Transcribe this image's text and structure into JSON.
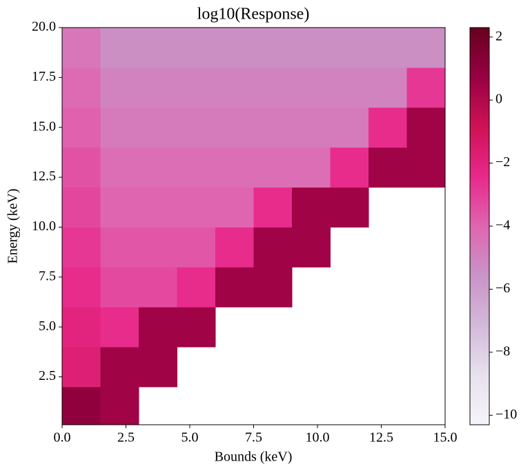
{
  "chart_data": {
    "type": "heatmap",
    "title": "log10(Response)",
    "x_label": "Bounds (keV)",
    "y_label": "Energy (keV)",
    "xlim": [
      0,
      15
    ],
    "ylim": [
      0.1,
      20
    ],
    "xticks": [
      {
        "value": 0,
        "label": "0.0"
      },
      {
        "value": 2.5,
        "label": "2.5"
      },
      {
        "value": 5,
        "label": "5.0"
      },
      {
        "value": 7.5,
        "label": "7.5"
      },
      {
        "value": 10,
        "label": "10.0"
      },
      {
        "value": 12.5,
        "label": "12.5"
      },
      {
        "value": 15,
        "label": "15.0"
      }
    ],
    "yticks": [
      {
        "value": 2.5,
        "label": "2.5"
      },
      {
        "value": 5,
        "label": "5.0"
      },
      {
        "value": 7.5,
        "label": "7.5"
      },
      {
        "value": 10,
        "label": "10.0"
      },
      {
        "value": 12.5,
        "label": "12.5"
      },
      {
        "value": 15,
        "label": "15.0"
      },
      {
        "value": 17.5,
        "label": "17.5"
      },
      {
        "value": 20,
        "label": "20.0"
      }
    ],
    "x_bins": [
      0,
      1.5,
      3,
      4.5,
      6,
      7.5,
      9,
      10.5,
      12,
      13.5,
      15
    ],
    "y_bins": [
      0,
      2,
      4,
      6,
      8,
      10,
      12,
      14,
      16,
      18,
      20
    ],
    "z": [
      [
        1,
        0.5,
        null,
        null,
        null,
        null,
        null,
        null,
        null,
        null
      ],
      [
        -1.8,
        0.5,
        0.5,
        null,
        null,
        null,
        null,
        null,
        null,
        null
      ],
      [
        -2.1,
        -2.5,
        0.5,
        0.5,
        null,
        null,
        null,
        null,
        null,
        null
      ],
      [
        -2.5,
        -3.3,
        -3.3,
        -2.5,
        0.5,
        0.5,
        null,
        null,
        null,
        null
      ],
      [
        -2.8,
        -3.6,
        -3.6,
        -3.6,
        -2.5,
        0.5,
        0.5,
        null,
        null,
        null
      ],
      [
        -3.2,
        -4.0,
        -4.0,
        -4.0,
        -4.0,
        -2.5,
        0.5,
        0.5,
        null,
        null
      ],
      [
        -3.5,
        -4.3,
        -4.3,
        -4.3,
        -4.3,
        -4.3,
        -4.3,
        -2.5,
        0.5,
        0.5
      ],
      [
        -3.9,
        -4.7,
        -4.7,
        -4.7,
        -4.7,
        -4.7,
        -4.7,
        -4.7,
        -2.5,
        0.5
      ],
      [
        -4.2,
        -5.0,
        -5.0,
        -5.0,
        -5.0,
        -5.0,
        -5.0,
        -5.0,
        -5.0,
        -2.8
      ],
      [
        -4.6,
        -5.4,
        -5.4,
        -5.4,
        -5.4,
        -5.4,
        -5.4,
        -5.4,
        -5.4,
        -5.4
      ]
    ],
    "colormap": [
      "#f7f4f9",
      "#e7e1ef",
      "#d4b9da",
      "#c994c7",
      "#df65b0",
      "#e7298a",
      "#ce1256",
      "#980043",
      "#67001f"
    ],
    "clim": [
      -10.3,
      2.3
    ],
    "cticks": [
      {
        "value": -10,
        "label": "−10"
      },
      {
        "value": -8,
        "label": "−8"
      },
      {
        "value": -6,
        "label": "−6"
      },
      {
        "value": -4,
        "label": "−4"
      },
      {
        "value": -2,
        "label": "−2"
      },
      {
        "value": 0,
        "label": "0"
      },
      {
        "value": 2,
        "label": "2"
      }
    ]
  }
}
